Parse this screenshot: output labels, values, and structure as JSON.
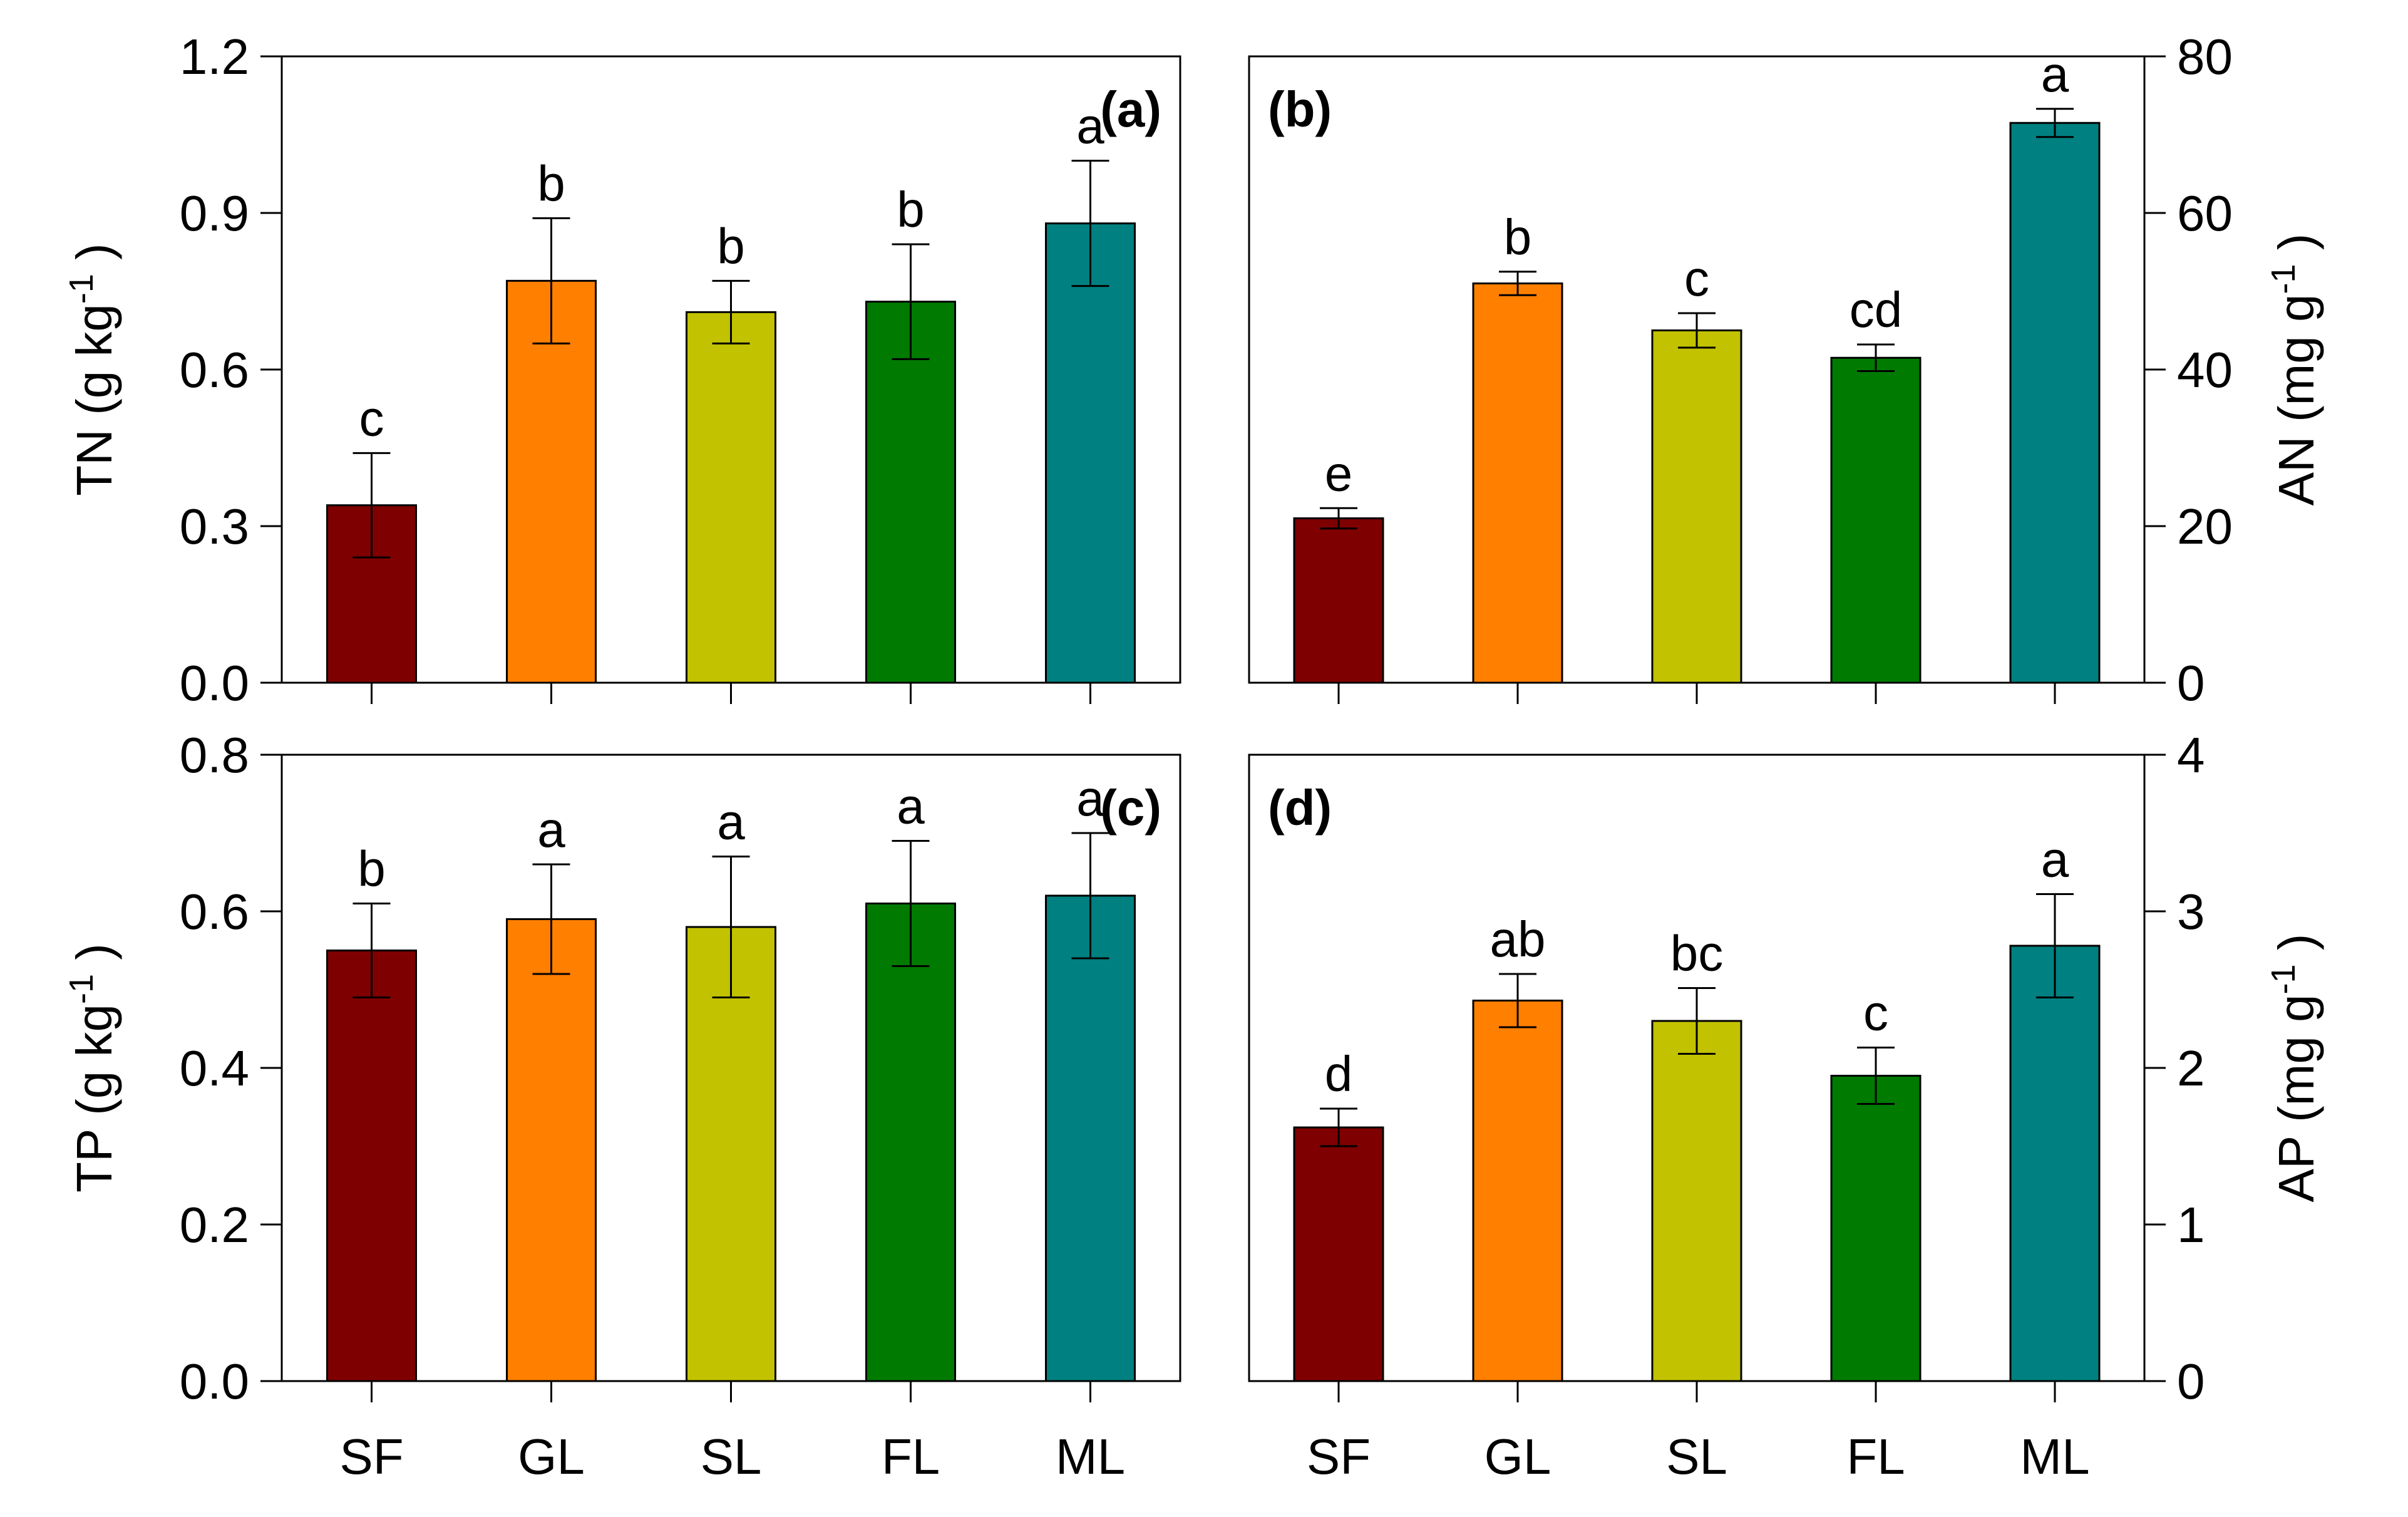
{
  "chart_data": [
    {
      "id": "a",
      "type": "bar",
      "panel_label": "(a)",
      "categories": [
        "SF",
        "GL",
        "SL",
        "FL",
        "ML"
      ],
      "values": [
        0.34,
        0.77,
        0.71,
        0.73,
        0.88
      ],
      "errors": [
        0.1,
        0.12,
        0.06,
        0.11,
        0.12
      ],
      "significance": [
        "c",
        "b",
        "b",
        "b",
        "a"
      ],
      "ylabel": {
        "main": "TN (g kg",
        "sup": "-1",
        "close": ")"
      },
      "y_axis_side": "left",
      "ylim": [
        0,
        1.2
      ],
      "yticks": [
        0.0,
        0.3,
        0.6,
        0.9,
        1.2
      ],
      "ytick_labels": [
        "0.0",
        "0.3",
        "0.6",
        "0.9",
        "1.2"
      ],
      "show_x_labels": false
    },
    {
      "id": "b",
      "type": "bar",
      "panel_label": "(b)",
      "categories": [
        "SF",
        "GL",
        "SL",
        "FL",
        "ML"
      ],
      "values": [
        21,
        51,
        45,
        41.5,
        71.5
      ],
      "errors": [
        1.3,
        1.5,
        2.2,
        1.7,
        1.8
      ],
      "significance": [
        "e",
        "b",
        "c",
        "cd",
        "a"
      ],
      "ylabel": {
        "main": "AN (mg g",
        "sup": "-1",
        "close": ")"
      },
      "y_axis_side": "right",
      "ylim": [
        0,
        80
      ],
      "yticks": [
        0,
        20,
        40,
        60,
        80
      ],
      "ytick_labels": [
        "0",
        "20",
        "40",
        "60",
        "80"
      ],
      "show_x_labels": false
    },
    {
      "id": "c",
      "type": "bar",
      "panel_label": "(c)",
      "categories": [
        "SF",
        "GL",
        "SL",
        "FL",
        "ML"
      ],
      "values": [
        0.55,
        0.59,
        0.58,
        0.61,
        0.62
      ],
      "errors": [
        0.06,
        0.07,
        0.09,
        0.08,
        0.08
      ],
      "significance": [
        "b",
        "a",
        "a",
        "a",
        "a"
      ],
      "ylabel": {
        "main": "TP (g kg",
        "sup": "-1",
        "close": ")"
      },
      "y_axis_side": "left",
      "ylim": [
        0,
        0.8
      ],
      "yticks": [
        0.0,
        0.2,
        0.4,
        0.6,
        0.8
      ],
      "ytick_labels": [
        "0.0",
        "0.2",
        "0.4",
        "0.6",
        "0.8"
      ],
      "show_x_labels": true
    },
    {
      "id": "d",
      "type": "bar",
      "panel_label": "(d)",
      "categories": [
        "SF",
        "GL",
        "SL",
        "FL",
        "ML"
      ],
      "values": [
        1.62,
        2.43,
        2.3,
        1.95,
        2.78
      ],
      "errors": [
        0.12,
        0.17,
        0.21,
        0.18,
        0.33
      ],
      "significance": [
        "d",
        "ab",
        "bc",
        "c",
        "a"
      ],
      "ylabel": {
        "main": "AP (mg g",
        "sup": "-1",
        "close": ")"
      },
      "y_axis_side": "right",
      "ylim": [
        0,
        4
      ],
      "yticks": [
        0,
        1,
        2,
        3,
        4
      ],
      "ytick_labels": [
        "0",
        "1",
        "2",
        "3",
        "4"
      ],
      "show_x_labels": true
    }
  ],
  "colors": {
    "SF": "#7f0000",
    "GL": "#ff7f00",
    "SL": "#c2c200",
    "FL": "#007a00",
    "ML": "#008080"
  }
}
